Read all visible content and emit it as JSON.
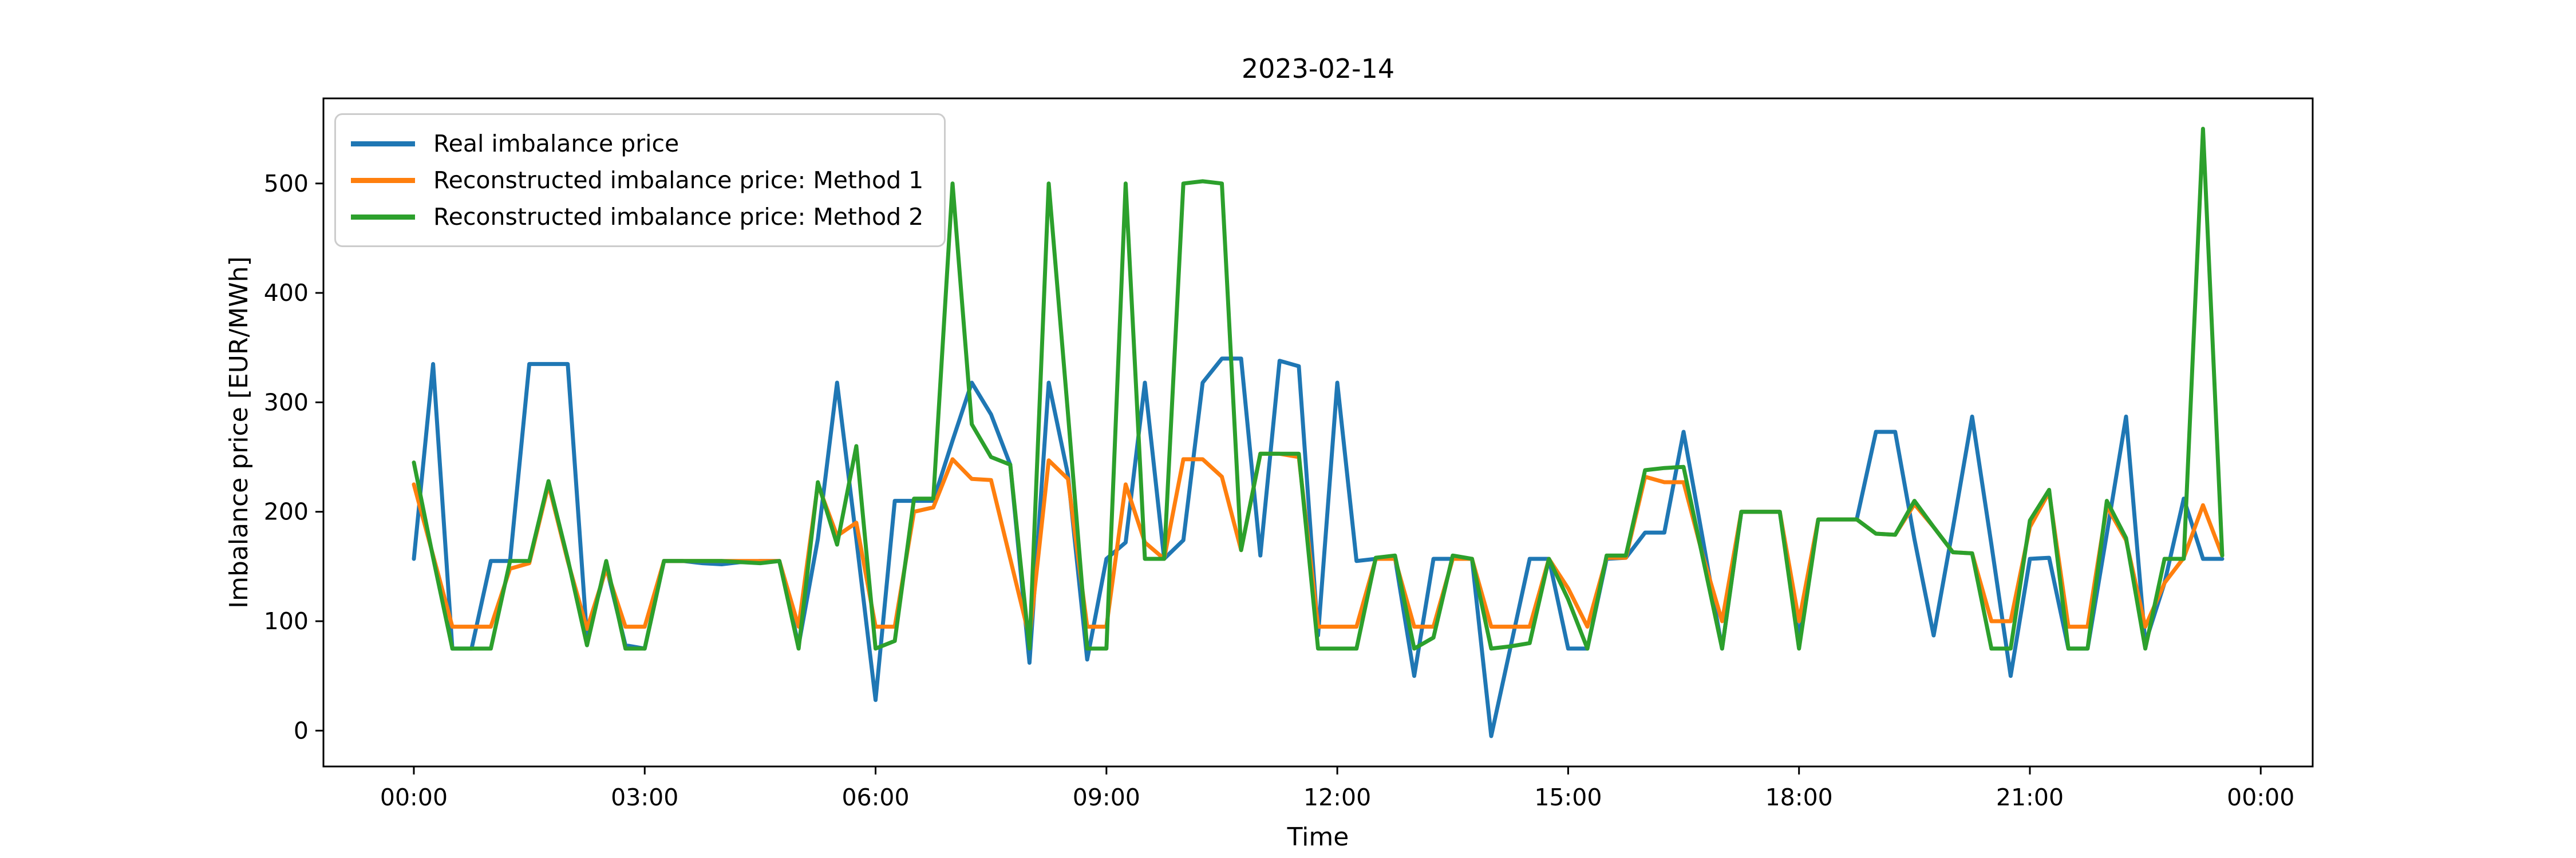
{
  "title": "2023-02-14",
  "axes": {
    "xlabel": "Time",
    "ylabel": "Imbalance price [EUR/MWh]"
  },
  "legend": {
    "entries": [
      {
        "label": "Real imbalance price",
        "color": "#1f77b4"
      },
      {
        "label": "Reconstructed imbalance price: Method 1",
        "color": "#ff7f0e"
      },
      {
        "label": "Reconstructed imbalance price: Method 2",
        "color": "#2ca02c"
      }
    ]
  },
  "chart_data": {
    "type": "line",
    "title": "2023-02-14",
    "xlabel": "Time",
    "ylabel": "Imbalance price [EUR/MWh]",
    "grid": false,
    "legend_position": "upper left",
    "x_tick_minutes": [
      0,
      180,
      360,
      540,
      720,
      900,
      1080,
      1260,
      1440
    ],
    "x_tick_labels": [
      "00:00",
      "03:00",
      "06:00",
      "09:00",
      "12:00",
      "15:00",
      "18:00",
      "21:00",
      "00:00"
    ],
    "y_tick_values": [
      0,
      100,
      200,
      300,
      400,
      500
    ],
    "xlim_minutes": [
      -70.5,
      1480.5
    ],
    "ylim": [
      -32.75,
      577.75
    ],
    "x": [
      "00:00",
      "00:15",
      "00:30",
      "00:45",
      "01:00",
      "01:15",
      "01:30",
      "01:45",
      "02:00",
      "02:15",
      "02:30",
      "02:45",
      "03:00",
      "03:15",
      "03:30",
      "03:45",
      "04:00",
      "04:15",
      "04:30",
      "04:45",
      "05:00",
      "05:15",
      "05:30",
      "05:45",
      "06:00",
      "06:15",
      "06:30",
      "06:45",
      "07:00",
      "07:15",
      "07:30",
      "07:45",
      "08:00",
      "08:15",
      "08:30",
      "08:45",
      "09:00",
      "09:15",
      "09:30",
      "09:45",
      "10:00",
      "10:15",
      "10:30",
      "10:45",
      "11:00",
      "11:15",
      "11:30",
      "11:45",
      "12:00",
      "12:15",
      "12:30",
      "12:45",
      "13:00",
      "13:15",
      "13:30",
      "13:45",
      "14:00",
      "14:15",
      "14:30",
      "14:45",
      "15:00",
      "15:15",
      "15:30",
      "15:45",
      "16:00",
      "16:15",
      "16:30",
      "16:45",
      "17:00",
      "17:15",
      "17:30",
      "17:45",
      "18:00",
      "18:15",
      "18:30",
      "18:45",
      "19:00",
      "19:15",
      "19:30",
      "19:45",
      "20:00",
      "20:15",
      "20:30",
      "20:45",
      "21:00",
      "21:15",
      "21:30",
      "21:45",
      "22:00",
      "22:15",
      "22:30",
      "22:45",
      "23:00",
      "23:15",
      "23:30"
    ],
    "series": [
      {
        "name": "Real imbalance price",
        "color": "#1f77b4",
        "values": [
          157,
          335,
          75,
          75,
          155,
          155,
          335,
          335,
          335,
          85,
          150,
          78,
          75,
          155,
          155,
          153,
          152,
          154,
          155,
          155,
          78,
          175,
          318,
          175,
          28,
          210,
          210,
          210,
          265,
          318,
          289,
          243,
          62,
          318,
          234,
          65,
          157,
          172,
          318,
          157,
          174,
          318,
          340,
          340,
          160,
          338,
          333,
          87,
          318,
          155,
          157,
          158,
          50,
          157,
          157,
          157,
          -5,
          76,
          157,
          157,
          75,
          75,
          157,
          158,
          181,
          181,
          273,
          175,
          75,
          200,
          200,
          200,
          85,
          193,
          193,
          193,
          273,
          273,
          175,
          87,
          185,
          287,
          170,
          50,
          157,
          158,
          75,
          75,
          180,
          287,
          80,
          135,
          212,
          157,
          157
        ]
      },
      {
        "name": "Reconstructed imbalance price: Method 1",
        "color": "#ff7f0e",
        "values": [
          225,
          160,
          95,
          95,
          95,
          148,
          153,
          225,
          155,
          93,
          148,
          95,
          95,
          155,
          155,
          155,
          155,
          155,
          155,
          155,
          95,
          225,
          178,
          190,
          95,
          95,
          200,
          204,
          248,
          230,
          229,
          157,
          85,
          247,
          230,
          95,
          95,
          225,
          172,
          157,
          248,
          248,
          232,
          165,
          253,
          253,
          250,
          95,
          95,
          95,
          157,
          157,
          95,
          95,
          157,
          157,
          95,
          95,
          95,
          157,
          130,
          95,
          158,
          158,
          232,
          227,
          227,
          160,
          100,
          200,
          200,
          200,
          100,
          193,
          193,
          193,
          180,
          179,
          207,
          186,
          163,
          162,
          100,
          100,
          186,
          218,
          95,
          95,
          205,
          174,
          95,
          135,
          158,
          206,
          160
        ]
      },
      {
        "name": "Reconstructed imbalance price: Method 2",
        "color": "#2ca02c",
        "values": [
          245,
          158,
          75,
          75,
          75,
          155,
          155,
          228,
          157,
          78,
          155,
          75,
          75,
          155,
          155,
          155,
          155,
          154,
          153,
          155,
          75,
          227,
          170,
          260,
          75,
          82,
          212,
          212,
          500,
          280,
          250,
          243,
          75,
          500,
          290,
          75,
          75,
          500,
          157,
          157,
          500,
          502,
          500,
          165,
          253,
          253,
          253,
          75,
          75,
          75,
          158,
          160,
          75,
          85,
          160,
          157,
          75,
          77,
          80,
          157,
          120,
          75,
          160,
          160,
          238,
          240,
          241,
          158,
          75,
          200,
          200,
          200,
          75,
          193,
          193,
          193,
          180,
          179,
          210,
          186,
          163,
          162,
          75,
          75,
          192,
          220,
          75,
          75,
          210,
          176,
          75,
          157,
          157,
          550,
          160
        ]
      }
    ]
  }
}
